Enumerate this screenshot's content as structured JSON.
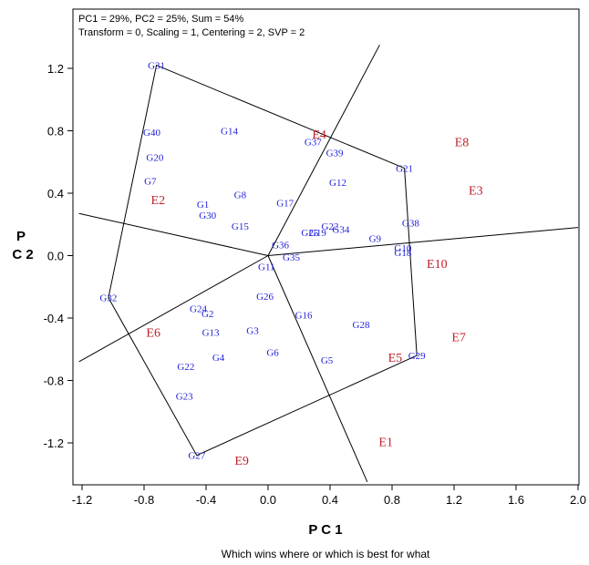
{
  "chart_data": {
    "type": "scatter",
    "info_lines": [
      "PC1 = 29%, PC2 = 25%, Sum = 54%",
      "Transform = 0, Scaling = 1, Centering = 2, SVP = 2"
    ],
    "xlabel": "P C 1",
    "ylabel": "P C 2",
    "caption": "Which wins where or which is best for what",
    "xlim": [
      -1.2,
      2.0
    ],
    "ylim": [
      -1.45,
      1.45
    ],
    "xticks": [
      "-1.2",
      "-0.8",
      "-0.4",
      "0.0",
      "0.4",
      "0.8",
      "1.2",
      "1.6",
      "2.0"
    ],
    "xtick_values": [
      -1.2,
      -0.8,
      -0.4,
      0.0,
      0.4,
      0.8,
      1.2,
      1.6,
      2.0
    ],
    "yticks": [
      "1.2",
      "0.8",
      "0.4",
      "0.0",
      "-0.4",
      "-0.8",
      "-1.2"
    ],
    "ytick_values": [
      1.2,
      0.8,
      0.4,
      0.0,
      -0.4,
      -0.8,
      -1.2
    ],
    "colors": {
      "genotype": "#1f1fd8",
      "environment": "#c0202a",
      "lines": "#000000"
    },
    "genotypes": [
      {
        "name": "G31",
        "x": -0.72,
        "y": 1.22
      },
      {
        "name": "G40",
        "x": -0.75,
        "y": 0.79
      },
      {
        "name": "G14",
        "x": -0.25,
        "y": 0.8
      },
      {
        "name": "G20",
        "x": -0.73,
        "y": 0.63
      },
      {
        "name": "G7",
        "x": -0.76,
        "y": 0.48
      },
      {
        "name": "G8",
        "x": -0.18,
        "y": 0.39
      },
      {
        "name": "G1",
        "x": -0.42,
        "y": 0.33
      },
      {
        "name": "G30",
        "x": -0.39,
        "y": 0.26
      },
      {
        "name": "G15",
        "x": -0.18,
        "y": 0.19
      },
      {
        "name": "G17",
        "x": 0.11,
        "y": 0.34
      },
      {
        "name": "G37",
        "x": 0.29,
        "y": 0.73
      },
      {
        "name": "G39",
        "x": 0.43,
        "y": 0.66
      },
      {
        "name": "G12",
        "x": 0.45,
        "y": 0.47
      },
      {
        "name": "G21",
        "x": 0.88,
        "y": 0.56
      },
      {
        "name": "G38",
        "x": 0.92,
        "y": 0.21
      },
      {
        "name": "G22",
        "x": 0.4,
        "y": 0.19
      },
      {
        "name": "G34",
        "x": 0.47,
        "y": 0.17
      },
      {
        "name": "G25",
        "x": 0.27,
        "y": 0.15
      },
      {
        "name": "G19",
        "x": 0.32,
        "y": 0.15
      },
      {
        "name": "G9",
        "x": 0.69,
        "y": 0.11
      },
      {
        "name": "G36",
        "x": 0.08,
        "y": 0.07
      },
      {
        "name": "G10",
        "x": 0.87,
        "y": 0.05
      },
      {
        "name": "G18",
        "x": 0.87,
        "y": 0.02
      },
      {
        "name": "G35",
        "x": 0.15,
        "y": -0.01
      },
      {
        "name": "G11",
        "x": -0.01,
        "y": -0.07
      },
      {
        "name": "G26",
        "x": -0.02,
        "y": -0.26
      },
      {
        "name": "G32",
        "x": -1.03,
        "y": -0.27
      },
      {
        "name": "G24",
        "x": -0.45,
        "y": -0.34
      },
      {
        "name": "G2",
        "x": -0.39,
        "y": -0.37
      },
      {
        "name": "G16",
        "x": 0.23,
        "y": -0.38
      },
      {
        "name": "G28",
        "x": 0.6,
        "y": -0.44
      },
      {
        "name": "G13",
        "x": -0.37,
        "y": -0.49
      },
      {
        "name": "G3",
        "x": -0.1,
        "y": -0.48
      },
      {
        "name": "G6",
        "x": 0.03,
        "y": -0.62
      },
      {
        "name": "G4",
        "x": -0.32,
        "y": -0.65
      },
      {
        "name": "G5",
        "x": 0.38,
        "y": -0.67
      },
      {
        "name": "G29",
        "x": 0.96,
        "y": -0.64
      },
      {
        "name": "G22",
        "x": -0.53,
        "y": -0.71
      },
      {
        "name": "G23",
        "x": -0.54,
        "y": -0.9
      },
      {
        "name": "G27",
        "x": -0.46,
        "y": -1.28
      }
    ],
    "environments": [
      {
        "name": "E4",
        "x": 0.33,
        "y": 0.78
      },
      {
        "name": "E8",
        "x": 1.25,
        "y": 0.73
      },
      {
        "name": "E3",
        "x": 1.34,
        "y": 0.42
      },
      {
        "name": "E2",
        "x": -0.71,
        "y": 0.36
      },
      {
        "name": "E10",
        "x": 1.09,
        "y": -0.05
      },
      {
        "name": "E6",
        "x": -0.74,
        "y": -0.49
      },
      {
        "name": "E7",
        "x": 1.23,
        "y": -0.52
      },
      {
        "name": "E5",
        "x": 0.82,
        "y": -0.65
      },
      {
        "name": "E1",
        "x": 0.76,
        "y": -1.19
      },
      {
        "name": "E9",
        "x": -0.17,
        "y": -1.31
      }
    ],
    "hull": [
      "G31",
      "G21",
      "G29",
      "G27",
      "G32"
    ],
    "ray_ends": [
      {
        "x": -1.22,
        "y": 0.27
      },
      {
        "x": 0.72,
        "y": 1.35
      },
      {
        "x": 2.0,
        "y": 0.18
      },
      {
        "x": 0.64,
        "y": -1.45
      },
      {
        "x": -1.22,
        "y": -0.68
      }
    ]
  }
}
